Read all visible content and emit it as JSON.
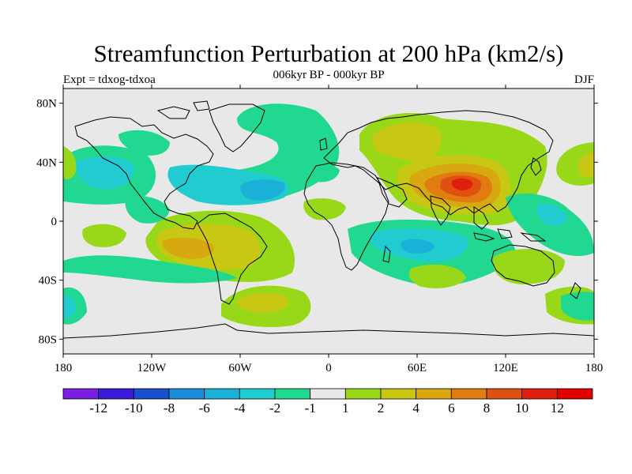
{
  "title": "Streamfunction Perturbation at 200 hPa (km2/s)",
  "subtitle": "006kyr BP - 000kyr BP",
  "experiment": "Expt = tdxog-tdxoa",
  "season": "DJF",
  "map": {
    "lat_ticks": [
      "80N",
      "40N",
      "0",
      "40S",
      "80S"
    ],
    "lon_ticks": [
      "180",
      "120W",
      "60W",
      "0",
      "60E",
      "120E",
      "180"
    ],
    "background_color": "#e8e8e8"
  },
  "colorbar": {
    "labels": [
      "-12",
      "-10",
      "-8",
      "-6",
      "-4",
      "-2",
      "-1",
      "1",
      "2",
      "4",
      "6",
      "8",
      "10",
      "12"
    ],
    "colors": [
      "#7a1ee0",
      "#3a1ad6",
      "#1a4ecf",
      "#1a8ed8",
      "#1ab0d8",
      "#20ccd0",
      "#20d890",
      "#e8e8e8",
      "#98d818",
      "#c8c814",
      "#d8a810",
      "#e07c10",
      "#e05010",
      "#e01e10",
      "#e00000"
    ]
  },
  "field_regions": [
    {
      "label": "Tibet/Central Asia high",
      "lon": 90,
      "lat": 28,
      "value": 10
    },
    {
      "label": "Eurasia positive",
      "lon": 60,
      "lat": 45,
      "value": 3
    },
    {
      "label": "South America positive",
      "lon": -80,
      "lat": -20,
      "value": 5
    },
    {
      "label": "South Atlantic positive",
      "lon": -40,
      "lat": -50,
      "value": 3
    },
    {
      "label": "North Pacific positive",
      "lon": 180,
      "lat": 38,
      "value": 3
    },
    {
      "label": "North Atlantic negative",
      "lon": -45,
      "lat": 22,
      "value": -4
    },
    {
      "label": "North Pacific negative",
      "lon": -150,
      "lat": 38,
      "value": -3
    },
    {
      "label": "Indian Ocean negative",
      "lon": 60,
      "lat": -20,
      "value": -3
    },
    {
      "label": "North Atlantic arc",
      "lon": -30,
      "lat": 65,
      "value": -1.5
    }
  ]
}
